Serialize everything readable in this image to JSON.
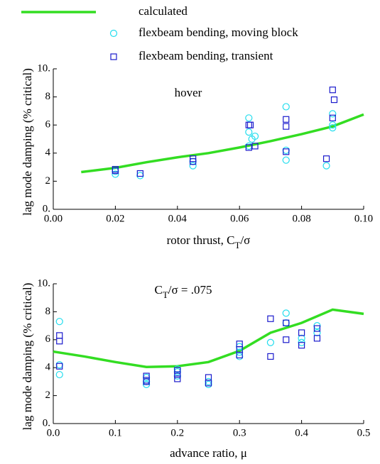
{
  "chart_data": [
    {
      "type": "scatter",
      "annotation": [
        "hover"
      ],
      "xlabel": [
        "rotor thrust, C",
        "T",
        "/σ"
      ],
      "ylabel": "lag mode damping (% critical)",
      "xlim": [
        0,
        0.1
      ],
      "ylim": [
        0,
        10
      ],
      "xticks": [
        {
          "value": 0,
          "label": "0.00"
        },
        0.02,
        0.04,
        0.06,
        0.08,
        {
          "value": 0.1,
          "label": "0.10"
        }
      ],
      "yticks": [
        {
          "value": 0,
          "label": "0."
        },
        2,
        4,
        6,
        8,
        {
          "value": 10,
          "label": "10."
        }
      ],
      "series": [
        {
          "name": "calculated",
          "color": "#33dd22",
          "marker": "line",
          "x": [
            0.009,
            0.02,
            0.03,
            0.04,
            0.05,
            0.06,
            0.07,
            0.08,
            0.09,
            0.1
          ],
          "values": [
            2.65,
            2.95,
            3.35,
            3.7,
            4.0,
            4.4,
            4.85,
            5.35,
            5.9,
            6.75
          ]
        },
        {
          "name": "flexbeam bending, moving block",
          "color": "#22ddee",
          "marker": "circle",
          "x": [
            0.02,
            0.02,
            0.028,
            0.045,
            0.045,
            0.063,
            0.063,
            0.064,
            0.065,
            0.063,
            0.075,
            0.075,
            0.075,
            0.088,
            0.09,
            0.09,
            0.09
          ],
          "values": [
            2.5,
            2.7,
            2.4,
            3.1,
            3.4,
            6.5,
            5.5,
            5.0,
            5.2,
            4.5,
            7.3,
            4.2,
            3.5,
            3.1,
            6.8,
            6.0,
            5.8
          ]
        },
        {
          "name": "flexbeam bending, transient",
          "color": "#1a1acc",
          "marker": "square",
          "x": [
            0.02,
            0.02,
            0.028,
            0.045,
            0.045,
            0.063,
            0.0635,
            0.063,
            0.065,
            0.075,
            0.075,
            0.075,
            0.088,
            0.09,
            0.0905,
            0.09
          ],
          "values": [
            2.75,
            2.85,
            2.55,
            3.4,
            3.6,
            6.0,
            6.0,
            4.4,
            4.5,
            6.4,
            5.9,
            4.1,
            3.6,
            8.5,
            7.8,
            6.5
          ]
        }
      ]
    },
    {
      "type": "scatter",
      "annotation": [
        "C",
        "T",
        "/σ = .075"
      ],
      "xlabel": [
        "advance ratio, μ"
      ],
      "ylabel": "lag mode damping (% critical)",
      "xlim": [
        0,
        0.5
      ],
      "ylim": [
        0,
        10
      ],
      "xticks": [
        {
          "value": 0,
          "label": "0.0"
        },
        0.1,
        0.2,
        0.3,
        0.4,
        0.5
      ],
      "yticks": [
        {
          "value": 0,
          "label": "0."
        },
        2,
        4,
        6,
        8,
        {
          "value": 10,
          "label": "10."
        }
      ],
      "series": [
        {
          "color": "#33dd22",
          "marker": "line",
          "x": [
            0,
            0.05,
            0.1,
            0.15,
            0.2,
            0.25,
            0.3,
            0.35,
            0.4,
            0.45,
            0.5
          ],
          "values": [
            5.15,
            4.8,
            4.4,
            4.05,
            4.1,
            4.4,
            5.2,
            6.5,
            7.2,
            8.15,
            7.85
          ]
        },
        {
          "color": "#22ddee",
          "marker": "circle",
          "x": [
            0.01,
            0.01,
            0.01,
            0.15,
            0.15,
            0.15,
            0.2,
            0.2,
            0.2,
            0.25,
            0.25,
            0.3,
            0.3,
            0.3,
            0.35,
            0.375,
            0.375,
            0.4,
            0.4,
            0.425,
            0.425
          ],
          "values": [
            7.3,
            4.2,
            3.5,
            3.0,
            2.8,
            3.3,
            3.9,
            3.7,
            3.4,
            2.8,
            3.0,
            4.8,
            5.1,
            5.5,
            5.8,
            7.9,
            7.2,
            5.8,
            6.1,
            7.0,
            6.5
          ]
        },
        {
          "color": "#1a1acc",
          "marker": "square",
          "x": [
            0.01,
            0.01,
            0.01,
            0.15,
            0.15,
            0.15,
            0.2,
            0.2,
            0.2,
            0.25,
            0.25,
            0.3,
            0.3,
            0.3,
            0.35,
            0.35,
            0.375,
            0.375,
            0.4,
            0.4,
            0.425,
            0.425
          ],
          "values": [
            6.3,
            5.9,
            4.1,
            3.4,
            3.1,
            3.0,
            3.8,
            3.5,
            3.2,
            3.3,
            2.9,
            5.7,
            5.3,
            4.9,
            7.5,
            4.8,
            7.2,
            6.0,
            6.5,
            5.6,
            6.8,
            6.1
          ]
        }
      ]
    }
  ]
}
